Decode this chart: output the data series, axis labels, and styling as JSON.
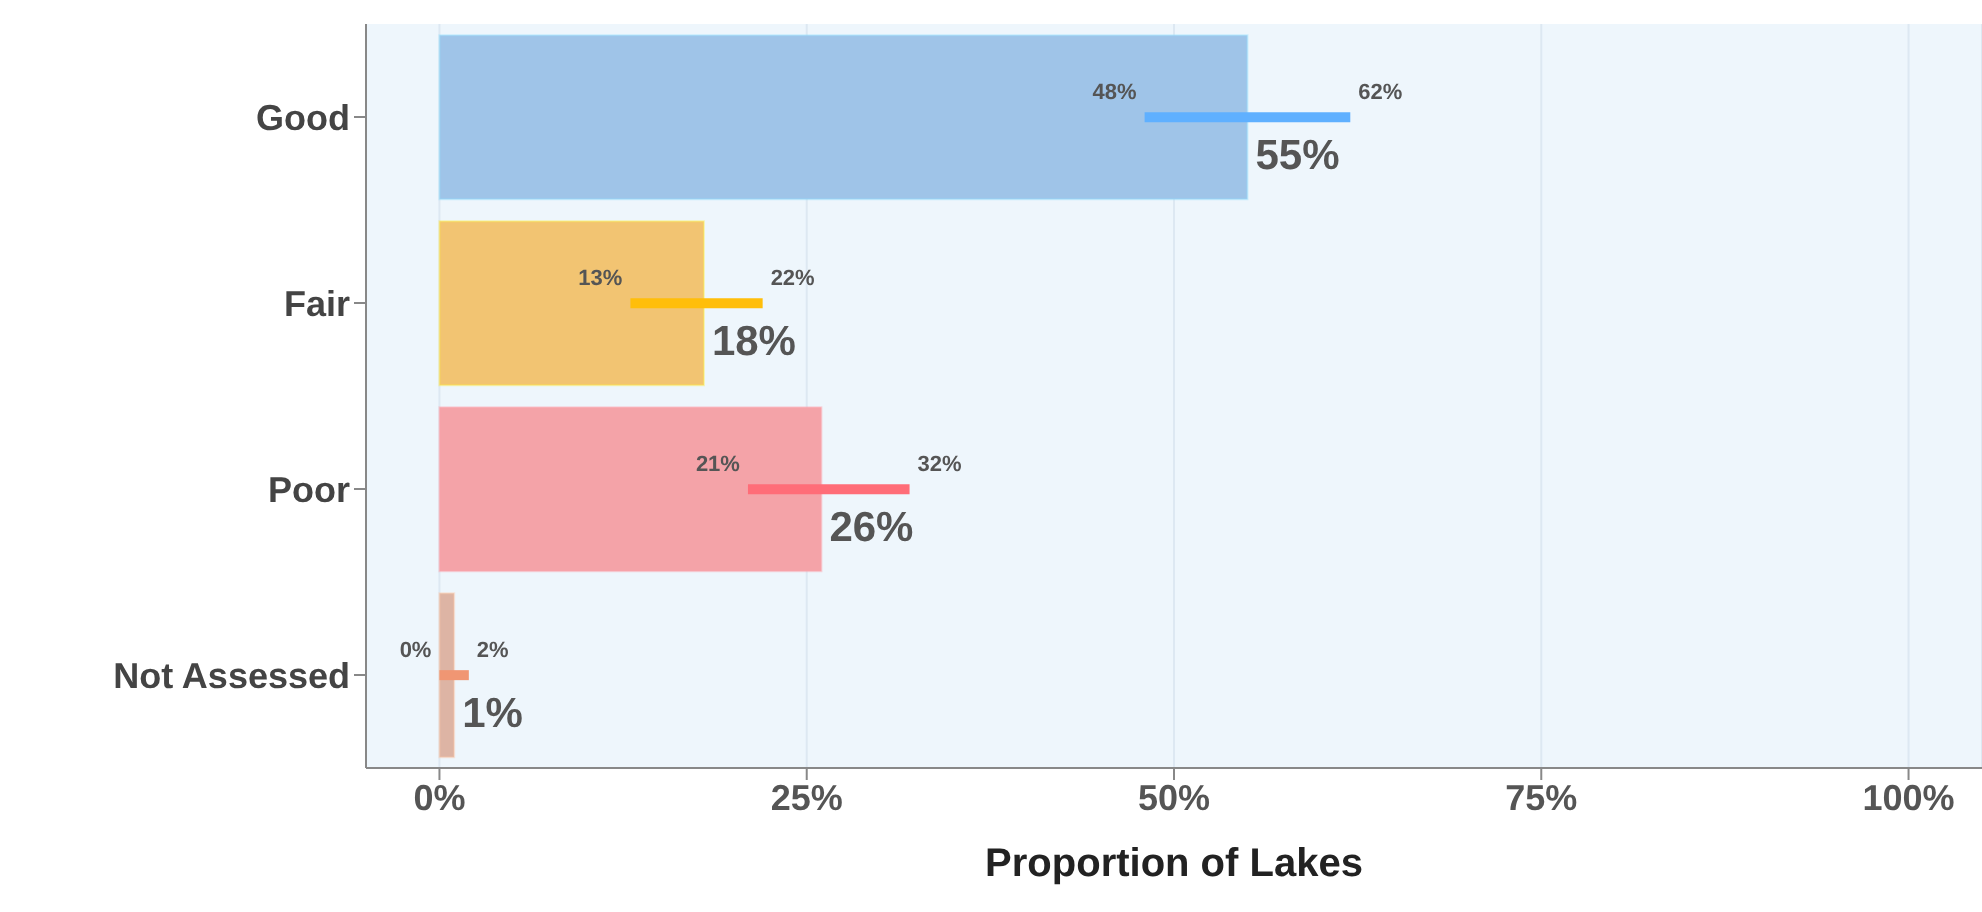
{
  "chart_data": {
    "type": "bar",
    "orientation": "horizontal",
    "xlabel": "Proportion of Lakes",
    "categories": [
      "Good",
      "Fair",
      "Poor",
      "Not Assessed"
    ],
    "values": [
      55,
      18,
      26,
      1
    ],
    "colors": [
      "#9fc4e8",
      "#f2c472",
      "#f4a3a8",
      "#ddb4a4"
    ],
    "errors": [
      [
        48,
        62
      ],
      [
        13,
        22
      ],
      [
        21,
        32
      ],
      [
        0,
        2
      ]
    ],
    "value_labels": [
      "55%",
      "18%",
      "26%",
      "1%"
    ],
    "annotations": [
      {
        "text": "48%",
        "x": 48,
        "y": "Good"
      },
      {
        "text": "62%",
        "x": 62,
        "y": "Good"
      },
      {
        "text": "13%",
        "x": 13,
        "y": "Fair"
      },
      {
        "text": "22%",
        "x": 22,
        "y": "Fair"
      },
      {
        "text": "21%",
        "x": 21,
        "y": "Poor"
      },
      {
        "text": "32%",
        "x": 32,
        "y": "Poor"
      },
      {
        "text": "0%",
        "x": 0,
        "y": "Not Assessed"
      },
      {
        "text": "2%",
        "x": 2,
        "y": "Not Assessed"
      }
    ],
    "xlim": [
      -5,
      105
    ],
    "xticks": [
      {
        "value": 0,
        "label": "0%"
      },
      {
        "value": 25,
        "label": "25%"
      },
      {
        "value": 50,
        "label": "50%"
      },
      {
        "value": 75,
        "label": "75%"
      },
      {
        "value": 100,
        "label": "100%"
      }
    ],
    "grid": "x",
    "legend": false
  }
}
